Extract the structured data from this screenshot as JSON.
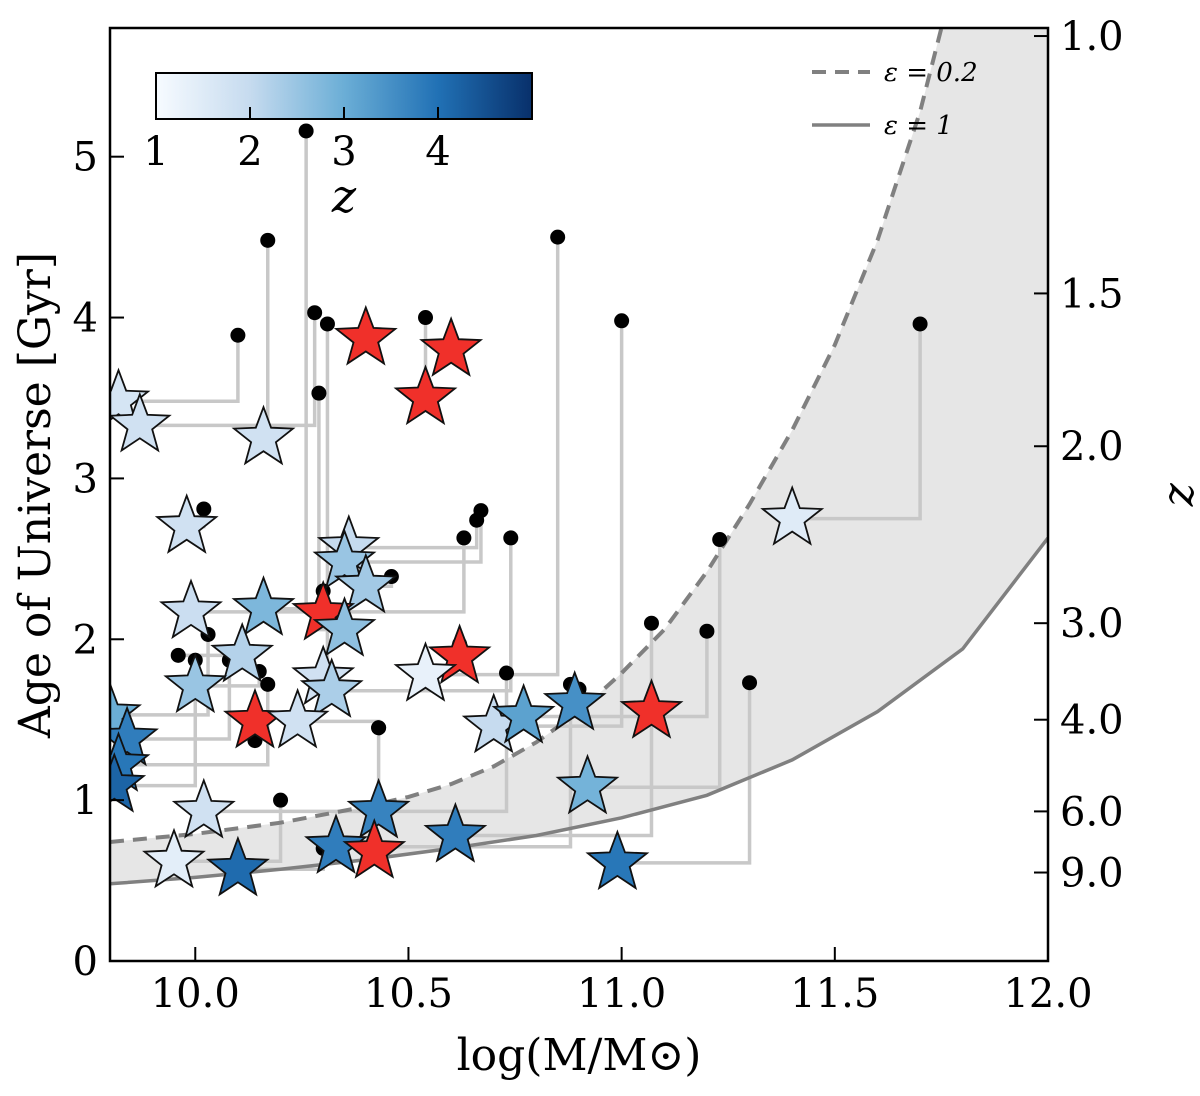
{
  "chart_data": {
    "type": "scatter",
    "xlabel": "log(M/M⊙)",
    "ylabel": "Age of Universe [Gyr]",
    "y2label": "z",
    "xlim": [
      9.8,
      12.0
    ],
    "ylim": [
      0,
      5.8
    ],
    "xticks": [
      {
        "value": 10.0,
        "label": "10.0"
      },
      {
        "value": 10.5,
        "label": "10.5"
      },
      {
        "value": 11.0,
        "label": "11.0"
      },
      {
        "value": 11.5,
        "label": "11.5"
      },
      {
        "value": 12.0,
        "label": "12.0"
      }
    ],
    "yticks": [
      {
        "value": 0,
        "label": "0"
      },
      {
        "value": 1,
        "label": "1"
      },
      {
        "value": 2,
        "label": "2"
      },
      {
        "value": 3,
        "label": "3"
      },
      {
        "value": 4,
        "label": "4"
      },
      {
        "value": 5,
        "label": "5"
      }
    ],
    "y2ticks": [
      {
        "age": 5.75,
        "label": "1.0"
      },
      {
        "age": 4.15,
        "label": "1.5"
      },
      {
        "age": 3.2,
        "label": "2.0"
      },
      {
        "age": 2.1,
        "label": "3.0"
      },
      {
        "age": 1.5,
        "label": "4.0"
      },
      {
        "age": 0.93,
        "label": "6.0"
      },
      {
        "age": 0.55,
        "label": "9.0"
      }
    ],
    "colorbar": {
      "label": "z",
      "min": 1,
      "max": 5,
      "ticks": [
        {
          "value": 1,
          "label": "1"
        },
        {
          "value": 2,
          "label": "2"
        },
        {
          "value": 3,
          "label": "3"
        },
        {
          "value": 4,
          "label": "4"
        }
      ],
      "colors": [
        "#f7fbff",
        "#c6dbef",
        "#6baed6",
        "#2171b5",
        "#08306b"
      ]
    },
    "legend": [
      {
        "label": "ε = 0.2",
        "style": "dashed",
        "color": "#808080"
      },
      {
        "label": "ε = 1",
        "style": "solid",
        "color": "#808080"
      }
    ],
    "curve_eps02": [
      [
        9.8,
        0.74
      ],
      [
        10.0,
        0.79
      ],
      [
        10.2,
        0.86
      ],
      [
        10.4,
        0.96
      ],
      [
        10.5,
        1.02
      ],
      [
        10.6,
        1.1
      ],
      [
        10.7,
        1.21
      ],
      [
        10.8,
        1.36
      ],
      [
        10.9,
        1.55
      ],
      [
        11.0,
        1.79
      ],
      [
        11.1,
        2.06
      ],
      [
        11.2,
        2.42
      ],
      [
        11.3,
        2.84
      ],
      [
        11.4,
        3.3
      ],
      [
        11.5,
        3.83
      ],
      [
        11.6,
        4.48
      ],
      [
        11.7,
        5.28
      ],
      [
        11.75,
        5.8
      ]
    ],
    "curve_eps1": [
      [
        9.8,
        0.48
      ],
      [
        10.0,
        0.52
      ],
      [
        10.2,
        0.57
      ],
      [
        10.4,
        0.63
      ],
      [
        10.6,
        0.7
      ],
      [
        10.8,
        0.78
      ],
      [
        11.0,
        0.89
      ],
      [
        11.2,
        1.03
      ],
      [
        11.4,
        1.25
      ],
      [
        11.6,
        1.55
      ],
      [
        11.8,
        1.94
      ],
      [
        12.0,
        2.63
      ]
    ],
    "curve_color": "#808080",
    "shade_color": "#e6e6e6",
    "connector_color": "#c8c8c8",
    "highlight_color": "#f0302a",
    "dot_color": "#000000",
    "star_edge_color": "#111111",
    "series": [
      {
        "name": "track_a",
        "values": [
          {
            "x": 9.82,
            "y": 3.48,
            "z": 1.7,
            "dx": 10.1,
            "dy": 3.89,
            "highlight": false
          },
          {
            "x": 9.87,
            "y": 3.33,
            "z": 1.8,
            "dx": 10.28,
            "dy": 4.03,
            "highlight": false
          },
          {
            "x": 10.16,
            "y": 3.25,
            "z": 1.8,
            "dx": 10.17,
            "dy": 4.48,
            "highlight": false
          },
          {
            "x": 10.4,
            "y": 3.87,
            "z": 1.6,
            "dx": 10.4,
            "dy": 3.88,
            "highlight": true
          },
          {
            "x": 10.6,
            "y": 3.8,
            "z": 1.6,
            "dx": 10.6,
            "dy": 3.83,
            "highlight": true
          },
          {
            "x": 10.54,
            "y": 3.5,
            "z": 1.8,
            "dx": 10.54,
            "dy": 4.0,
            "highlight": true
          },
          {
            "x": 11.4,
            "y": 2.75,
            "z": 1.5,
            "dx": 11.7,
            "dy": 3.96,
            "highlight": false
          },
          {
            "x": 9.98,
            "y": 2.7,
            "z": 1.8,
            "dx": 10.02,
            "dy": 2.81,
            "highlight": false
          },
          {
            "x": 10.36,
            "y": 2.57,
            "z": 2.0,
            "dx": 10.66,
            "dy": 2.74,
            "highlight": false
          },
          {
            "x": 10.35,
            "y": 2.48,
            "z": 2.5,
            "dx": 10.67,
            "dy": 2.8,
            "highlight": false
          },
          {
            "x": 10.4,
            "y": 2.33,
            "z": 2.4,
            "dx": 10.46,
            "dy": 2.39,
            "highlight": false
          },
          {
            "x": 9.99,
            "y": 2.17,
            "z": 1.9,
            "dx": 10.63,
            "dy": 2.63,
            "highlight": false
          },
          {
            "x": 10.16,
            "y": 2.19,
            "z": 2.8,
            "dx": 10.26,
            "dy": 5.16,
            "highlight": false
          },
          {
            "x": 10.3,
            "y": 2.16,
            "z": 2.5,
            "dx": 10.3,
            "dy": 2.3,
            "highlight": true
          },
          {
            "x": 10.35,
            "y": 2.06,
            "z": 2.6,
            "dx": 10.29,
            "dy": 3.53,
            "highlight": false
          },
          {
            "x": 10.11,
            "y": 1.9,
            "z": 2.2,
            "dx": 9.96,
            "dy": 1.9,
            "highlight": false
          },
          {
            "x": 10.62,
            "y": 1.89,
            "z": 2.0,
            "dx": 10.62,
            "dy": 1.97,
            "highlight": true
          },
          {
            "x": 10.0,
            "y": 1.71,
            "z": 2.5,
            "dx": 10.15,
            "dy": 1.8,
            "highlight": false
          },
          {
            "x": 10.3,
            "y": 1.76,
            "z": 1.8,
            "dx": 10.31,
            "dy": 3.96,
            "highlight": false
          },
          {
            "x": 10.32,
            "y": 1.68,
            "z": 2.3,
            "dx": 10.74,
            "dy": 2.63,
            "highlight": false
          },
          {
            "x": 10.54,
            "y": 1.78,
            "z": 1.3,
            "dx": 10.85,
            "dy": 4.5,
            "highlight": false
          },
          {
            "x": 10.14,
            "y": 1.49,
            "z": 2.0,
            "dx": 10.14,
            "dy": 1.37,
            "highlight": true
          },
          {
            "x": 10.24,
            "y": 1.49,
            "z": 1.8,
            "dx": 10.43,
            "dy": 1.45,
            "highlight": false
          },
          {
            "x": 10.7,
            "y": 1.46,
            "z": 2.0,
            "dx": 11.0,
            "dy": 3.98,
            "highlight": false
          },
          {
            "x": 10.77,
            "y": 1.52,
            "z": 3.2,
            "dx": 11.2,
            "dy": 2.05,
            "highlight": false
          },
          {
            "x": 10.89,
            "y": 1.6,
            "z": 3.5,
            "dx": 10.9,
            "dy": 1.69,
            "highlight": false
          },
          {
            "x": 11.07,
            "y": 1.55,
            "z": 3.0,
            "dx": 11.07,
            "dy": 2.1,
            "highlight": true
          },
          {
            "x": 9.8,
            "y": 1.53,
            "z": 3.0,
            "dx": 10.03,
            "dy": 2.03,
            "highlight": false
          },
          {
            "x": 9.84,
            "y": 1.38,
            "z": 3.8,
            "dx": 10.08,
            "dy": 1.87,
            "highlight": false
          },
          {
            "x": 9.82,
            "y": 1.22,
            "z": 3.9,
            "dx": 10.17,
            "dy": 1.72,
            "highlight": false
          },
          {
            "x": 9.81,
            "y": 1.09,
            "z": 4.2,
            "dx": 10.0,
            "dy": 1.87,
            "highlight": false
          },
          {
            "x": 10.02,
            "y": 0.93,
            "z": 1.8,
            "dx": 10.73,
            "dy": 1.79,
            "highlight": false
          },
          {
            "x": 10.43,
            "y": 0.93,
            "z": 3.7,
            "dx": 10.43,
            "dy": 1.45,
            "highlight": false
          },
          {
            "x": 10.92,
            "y": 1.08,
            "z": 2.9,
            "dx": 11.23,
            "dy": 2.62,
            "highlight": false
          },
          {
            "x": 10.33,
            "y": 0.71,
            "z": 3.8,
            "dx": 10.88,
            "dy": 1.72,
            "highlight": false
          },
          {
            "x": 10.42,
            "y": 0.68,
            "z": 3.5,
            "dx": 10.42,
            "dy": 0.7,
            "highlight": true
          },
          {
            "x": 10.61,
            "y": 0.78,
            "z": 3.8,
            "dx": 11.07,
            "dy": 1.6,
            "highlight": false
          },
          {
            "x": 10.99,
            "y": 0.61,
            "z": 3.9,
            "dx": 11.3,
            "dy": 1.73,
            "highlight": false
          },
          {
            "x": 9.95,
            "y": 0.62,
            "z": 1.4,
            "dx": 10.2,
            "dy": 1.0,
            "highlight": false
          },
          {
            "x": 10.1,
            "y": 0.57,
            "z": 4.1,
            "dx": 10.3,
            "dy": 0.7,
            "highlight": false
          }
        ]
      }
    ]
  }
}
